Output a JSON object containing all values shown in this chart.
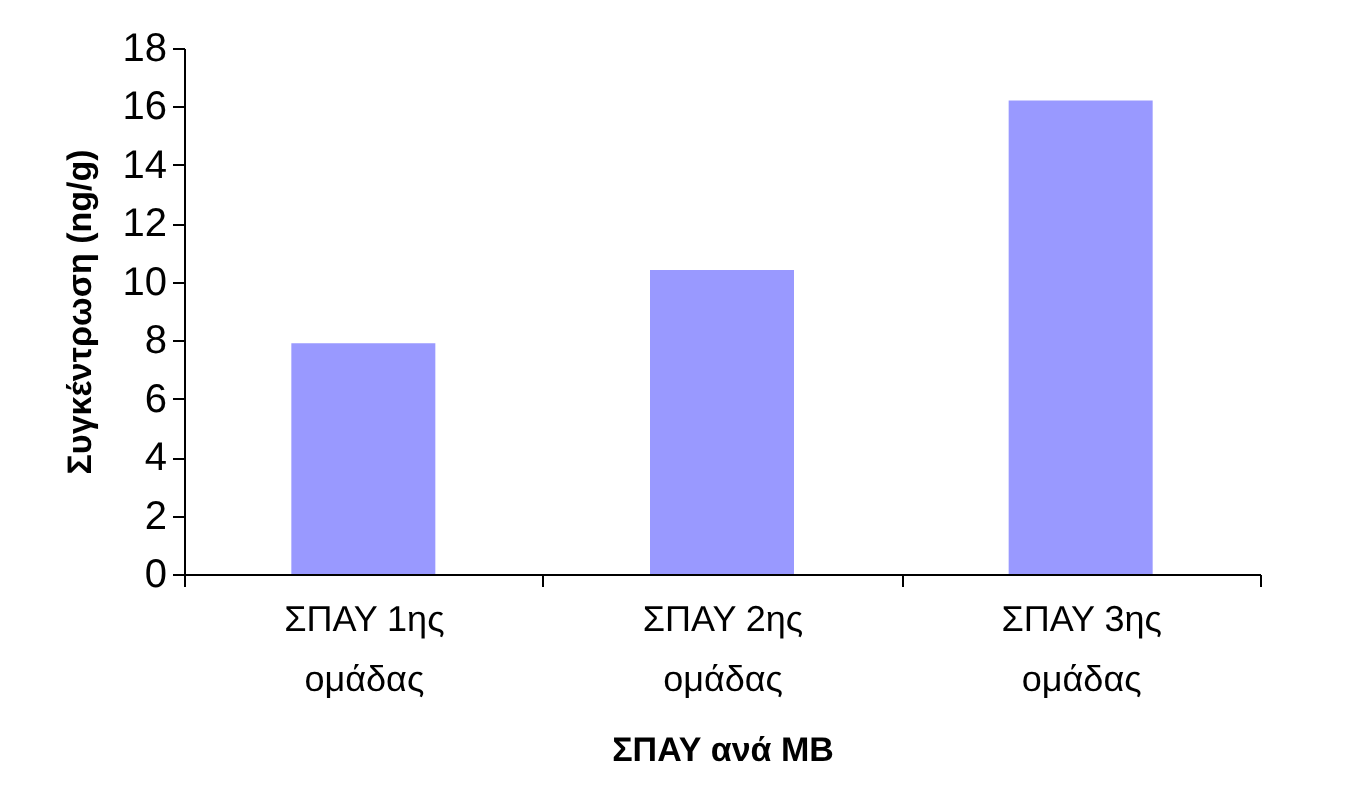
{
  "chart_data": {
    "type": "bar",
    "xlabel": "ΣΠΑΥ ανά ΜΒ",
    "ylabel": "Συγκέντρωση (ng/g)",
    "categories": [
      "ΣΠΑΥ 1ης ομάδας",
      "ΣΠΑΥ 2ης ομάδας",
      "ΣΠΑΥ 3ης ομάδας"
    ],
    "values": [
      7.9,
      10.4,
      16.2
    ],
    "color": "#9999ff",
    "ylim": [
      0,
      18
    ],
    "yticks": [
      0,
      2,
      4,
      6,
      8,
      10,
      12,
      14,
      16,
      18
    ]
  }
}
